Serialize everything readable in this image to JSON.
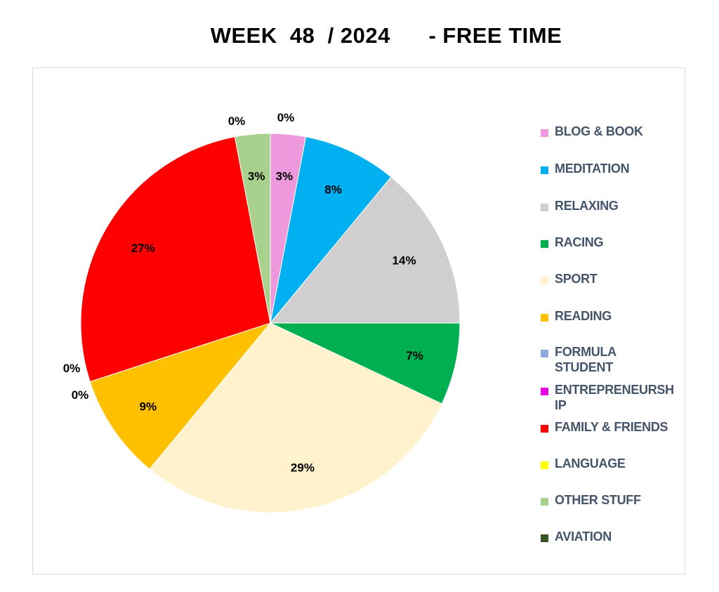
{
  "title": "WEEK  48  / 2024      - FREE TIME",
  "chart_data": {
    "type": "pie",
    "title": "WEEK  48  / 2024      - FREE TIME",
    "legend_position": "right",
    "slices": [
      {
        "name": "BLOG & BOOK",
        "value": 3,
        "label": "3%",
        "color": "#ee99dd"
      },
      {
        "name": "MEDITATION",
        "value": 8,
        "label": "8%",
        "color": "#00b0f0"
      },
      {
        "name": "RELAXING",
        "value": 14,
        "label": "14%",
        "color": "#d0cece"
      },
      {
        "name": "RACING",
        "value": 7,
        "label": "7%",
        "color": "#00b050"
      },
      {
        "name": "SPORT",
        "value": 29,
        "label": "29%",
        "color": "#fff2cc"
      },
      {
        "name": "READING",
        "value": 9,
        "label": "9%",
        "color": "#ffc000"
      },
      {
        "name": "FORMULA STUDENT",
        "value": 0,
        "label": "0%",
        "color": "#8ea9db"
      },
      {
        "name": "ENTREPRENEURSHIP",
        "value": 0,
        "label": "0%",
        "color": "#e600e6"
      },
      {
        "name": "FAMILY & FRIENDS",
        "value": 27,
        "label": "27%",
        "color": "#ff0000"
      },
      {
        "name": "LANGUAGE",
        "value": 0,
        "label": "0%",
        "color": "#ffff00"
      },
      {
        "name": "OTHER STUFF",
        "value": 3,
        "label": "3%",
        "color": "#a9d18e"
      },
      {
        "name": "AVIATION",
        "value": 0,
        "label": "0%",
        "color": "#375623"
      }
    ],
    "legend": [
      {
        "lines": [
          "BLOG & BOOK"
        ]
      },
      {
        "lines": [
          "MEDITATION"
        ]
      },
      {
        "lines": [
          "RELAXING"
        ]
      },
      {
        "lines": [
          "RACING"
        ]
      },
      {
        "lines": [
          "SPORT"
        ]
      },
      {
        "lines": [
          "READING"
        ]
      },
      {
        "lines": [
          "FORMULA",
          "STUDENT"
        ]
      },
      {
        "lines": [
          "ENTREPRENEURSH",
          "IP"
        ]
      },
      {
        "lines": [
          "FAMILY & FRIENDS"
        ]
      },
      {
        "lines": [
          "LANGUAGE"
        ]
      },
      {
        "lines": [
          "OTHER STUFF"
        ]
      },
      {
        "lines": [
          "AVIATION"
        ]
      }
    ]
  }
}
